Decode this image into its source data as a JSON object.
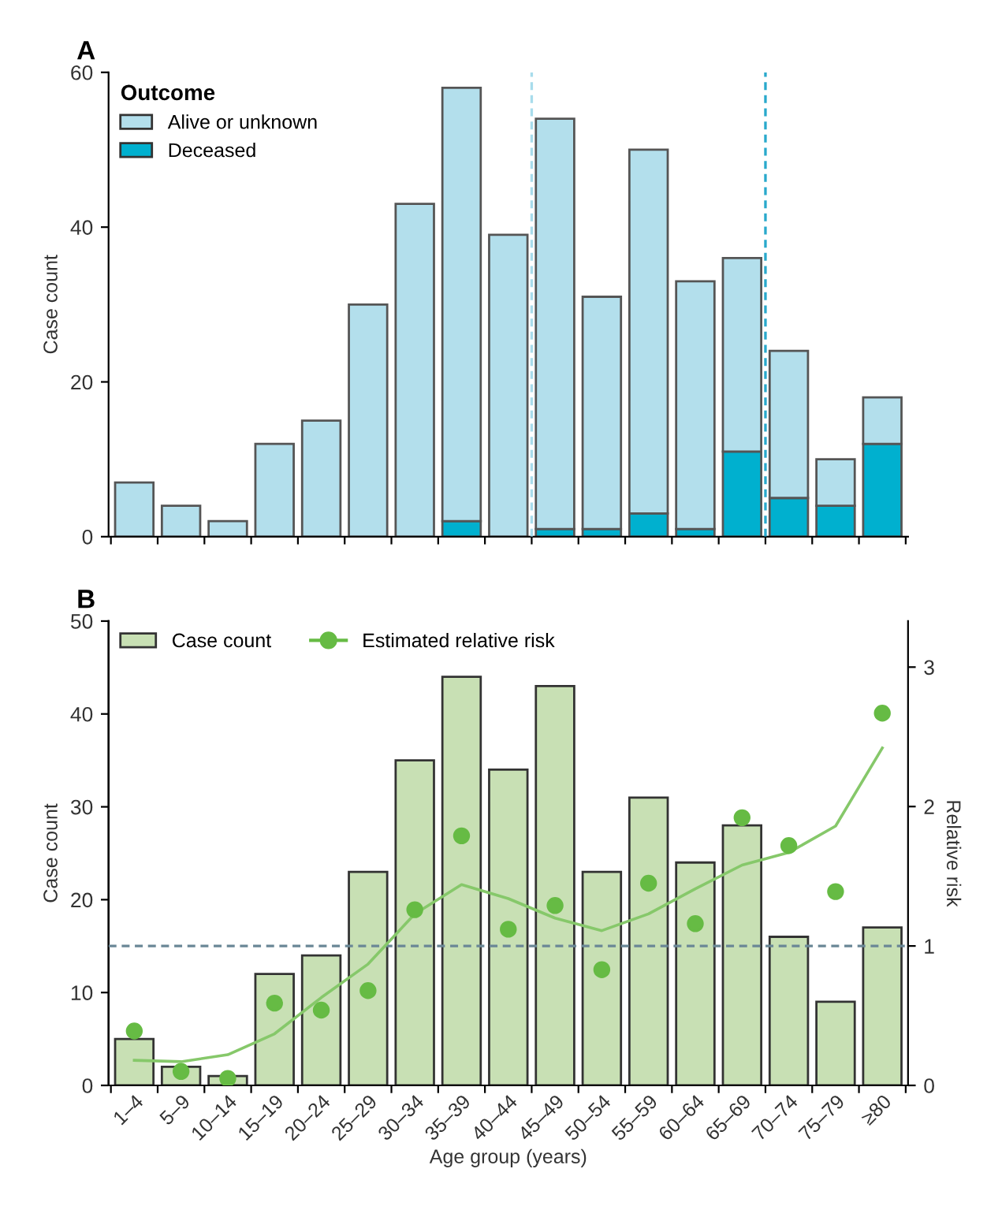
{
  "chart_data": [
    {
      "type": "bar",
      "title": "A",
      "ylabel": "Case count",
      "legend_title": "Outcome",
      "stacked": true,
      "legend": "top left",
      "categories": [
        null,
        null,
        null,
        null,
        null,
        null,
        null,
        null,
        null,
        null,
        null,
        null,
        null,
        null,
        null,
        null,
        null
      ],
      "series": [
        {
          "name": "Deceased",
          "color": "#00b0cf",
          "values": [
            0,
            0,
            0,
            0,
            0,
            0,
            0,
            2,
            0,
            1,
            1,
            3,
            1,
            11,
            5,
            4,
            12
          ]
        },
        {
          "name": "Alive or unknown",
          "color": "#b3dfec",
          "values": [
            7,
            4,
            2,
            12,
            15,
            30,
            43,
            56,
            39,
            53,
            30,
            47,
            32,
            25,
            19,
            6,
            6
          ]
        }
      ],
      "ylim": [
        0,
        60
      ],
      "yticks": [
        0,
        20,
        40,
        60
      ]
    },
    {
      "type": "bar",
      "title": "B",
      "ylabel": "Case count",
      "y2label": "Relative risk",
      "xlabel": "Age group (years)",
      "legend": "top left",
      "categories": [
        "1–4",
        "5–9",
        "10–14",
        "15–19",
        "20–24",
        "25–29",
        "30–34",
        "35–39",
        "40–44",
        "45–49",
        "50–54",
        "55–59",
        "60–64",
        "65–69",
        "70–74",
        "75–79",
        "≥80"
      ],
      "series": [
        {
          "name": "Case count",
          "type": "bar",
          "color": "#c8e0b4",
          "values": [
            5,
            2,
            1,
            12,
            14,
            23,
            35,
            44,
            34,
            43,
            23,
            31,
            24,
            28,
            16,
            9,
            17
          ]
        },
        {
          "name": "Estimated relative risk",
          "type": "scatter",
          "axis": "y2",
          "color": "#66bb44",
          "values": [
            0.39,
            0.1,
            0.05,
            0.59,
            0.54,
            0.68,
            1.26,
            1.79,
            1.12,
            1.29,
            0.83,
            1.45,
            1.16,
            1.92,
            1.72,
            1.39,
            2.67
          ]
        },
        {
          "type": "line",
          "axis": "y2",
          "color": "#86c86a",
          "values": [
            0.18,
            0.17,
            0.22,
            0.37,
            0.63,
            0.87,
            1.23,
            1.44,
            1.34,
            1.2,
            1.11,
            1.23,
            1.41,
            1.58,
            1.67,
            1.86,
            2.42
          ]
        }
      ],
      "ylim": [
        0,
        50
      ],
      "yticks": [
        0,
        10,
        20,
        30,
        40,
        50
      ],
      "y2lim": [
        0,
        3.33
      ],
      "y2ticks": [
        0,
        1,
        2,
        3
      ],
      "ref_lines": [
        {
          "axis": "y2",
          "value": 1,
          "color": "#6a8796",
          "line_style": "dashed"
        }
      ]
    }
  ]
}
